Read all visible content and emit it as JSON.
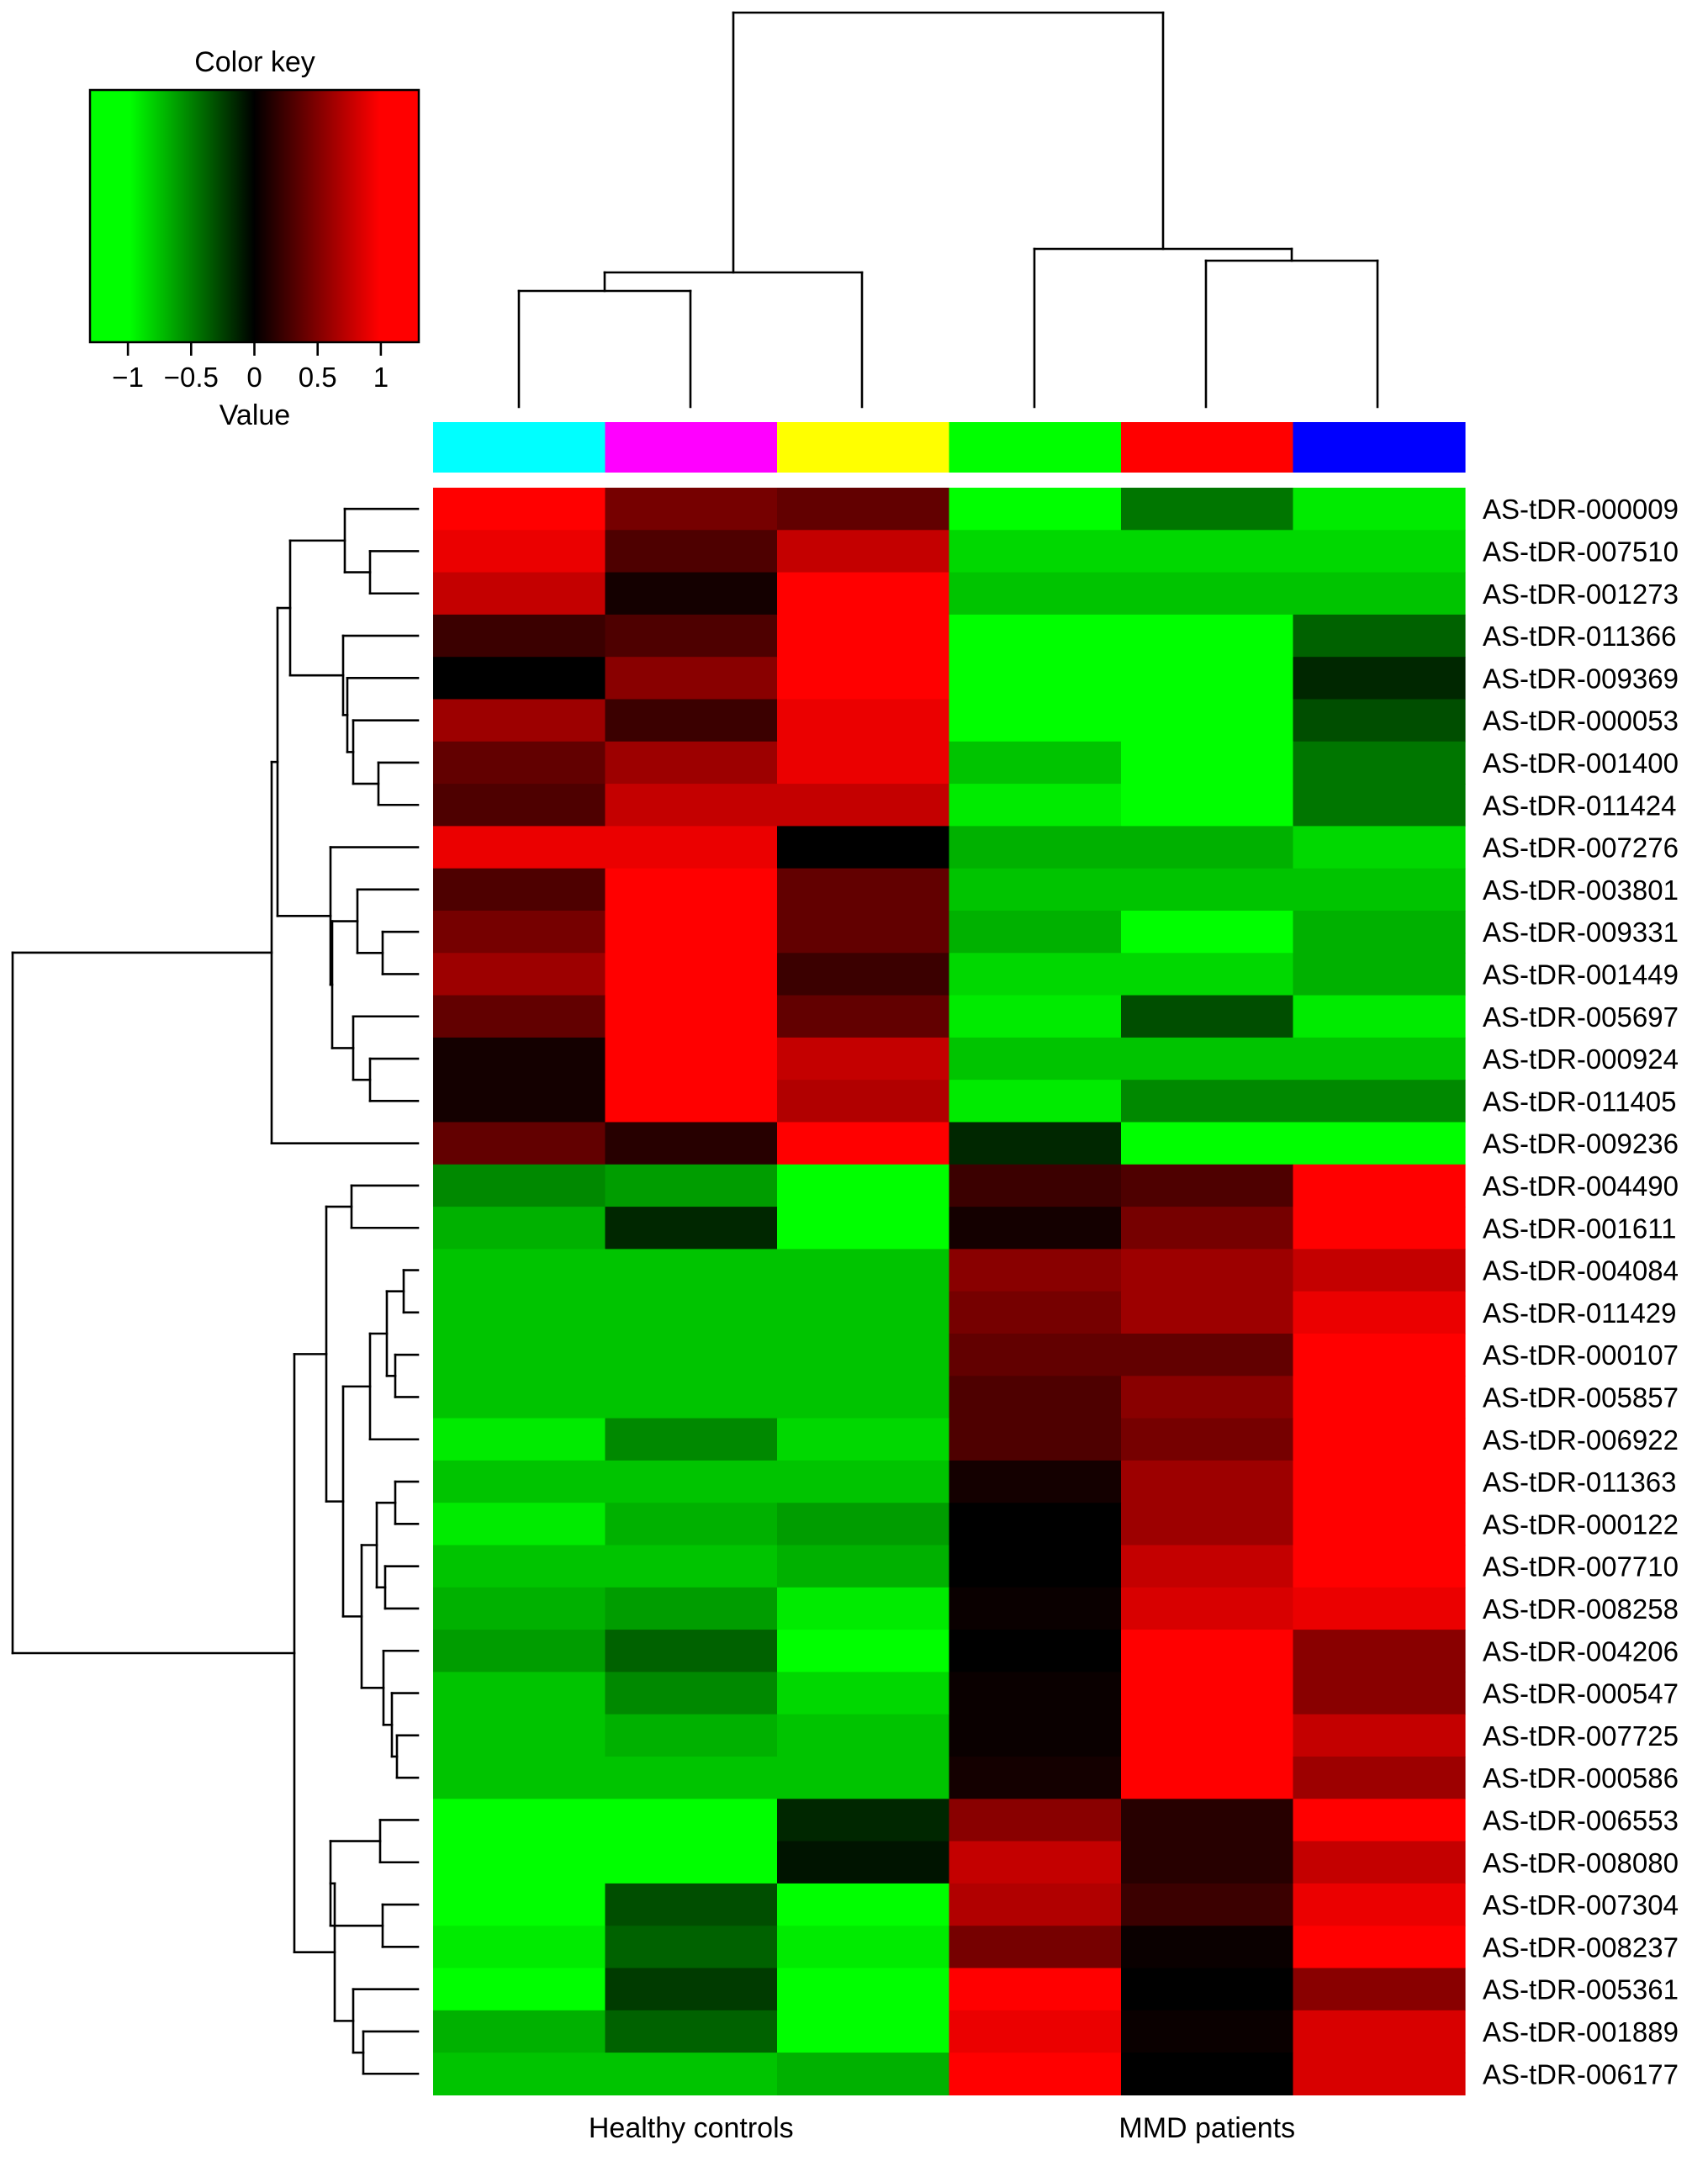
{
  "chart_data": {
    "type": "heatmap",
    "title": "",
    "color_key": {
      "title": "Color key",
      "xlabel": "Value",
      "range": [
        -1.3,
        1.3
      ],
      "ticks": [
        "−1",
        "−0.5",
        "0",
        "0.5",
        "1"
      ],
      "tick_values": [
        -1,
        -0.5,
        0,
        0.5,
        1
      ],
      "palette": {
        "low": "#00ff00",
        "mid": "#000000",
        "high": "#ff0000"
      }
    },
    "column_groups": [
      {
        "name": "Healthy controls",
        "columns": [
          0,
          1,
          2
        ]
      },
      {
        "name": "MMD patients",
        "columns": [
          3,
          4,
          5
        ]
      }
    ],
    "column_colors": [
      "#00ffff",
      "#ff00ff",
      "#ffff00",
      "#00ff00",
      "#ff0000",
      "#0000ff"
    ],
    "rows": [
      "AS-tDR-000009",
      "AS-tDR-007510",
      "AS-tDR-001273",
      "AS-tDR-011366",
      "AS-tDR-009369",
      "AS-tDR-000053",
      "AS-tDR-001400",
      "AS-tDR-011424",
      "AS-tDR-007276",
      "AS-tDR-003801",
      "AS-tDR-009331",
      "AS-tDR-001449",
      "AS-tDR-005697",
      "AS-tDR-000924",
      "AS-tDR-011405",
      "AS-tDR-009236",
      "AS-tDR-004490",
      "AS-tDR-001611",
      "AS-tDR-004084",
      "AS-tDR-011429",
      "AS-tDR-000107",
      "AS-tDR-005857",
      "AS-tDR-006922",
      "AS-tDR-011363",
      "AS-tDR-000122",
      "AS-tDR-007710",
      "AS-tDR-008258",
      "AS-tDR-004206",
      "AS-tDR-000547",
      "AS-tDR-007725",
      "AS-tDR-000586",
      "AS-tDR-006553",
      "AS-tDR-008080",
      "AS-tDR-007304",
      "AS-tDR-008237",
      "AS-tDR-005361",
      "AS-tDR-001889",
      "AS-tDR-006177"
    ],
    "values": [
      [
        1.3,
        0.6,
        0.5,
        -1.3,
        -0.6,
        -1.2
      ],
      [
        1.2,
        0.4,
        1.0,
        -1.1,
        -1.1,
        -1.1
      ],
      [
        1.0,
        0.1,
        1.3,
        -1.0,
        -1.0,
        -1.0
      ],
      [
        0.3,
        0.4,
        1.3,
        -1.3,
        -1.3,
        -0.5
      ],
      [
        0.0,
        0.7,
        1.3,
        -1.3,
        -1.3,
        -0.2
      ],
      [
        0.8,
        0.3,
        1.2,
        -1.3,
        -1.3,
        -0.4
      ],
      [
        0.5,
        0.8,
        1.2,
        -1.0,
        -1.3,
        -0.6
      ],
      [
        0.4,
        1.0,
        1.0,
        -1.2,
        -1.3,
        -0.6
      ],
      [
        1.2,
        1.2,
        0.0,
        -0.9,
        -0.9,
        -1.1
      ],
      [
        0.4,
        1.3,
        0.5,
        -1.0,
        -1.0,
        -1.0
      ],
      [
        0.6,
        1.3,
        0.5,
        -0.9,
        -1.3,
        -0.9
      ],
      [
        0.8,
        1.3,
        0.3,
        -1.1,
        -1.1,
        -0.9
      ],
      [
        0.5,
        1.3,
        0.5,
        -1.2,
        -0.4,
        -1.2
      ],
      [
        0.1,
        1.3,
        1.0,
        -1.0,
        -1.0,
        -1.0
      ],
      [
        0.1,
        1.3,
        0.9,
        -1.2,
        -0.7,
        -0.7
      ],
      [
        0.5,
        0.2,
        1.3,
        -0.2,
        -1.3,
        -1.3
      ],
      [
        -0.7,
        -0.8,
        -1.3,
        0.3,
        0.4,
        1.3
      ],
      [
        -0.9,
        -0.2,
        -1.3,
        0.1,
        0.6,
        1.3
      ],
      [
        -1.0,
        -1.0,
        -1.0,
        0.7,
        0.8,
        1.0
      ],
      [
        -1.0,
        -1.0,
        -1.0,
        0.6,
        0.8,
        1.2
      ],
      [
        -1.0,
        -1.0,
        -1.0,
        0.5,
        0.5,
        1.3
      ],
      [
        -1.0,
        -1.0,
        -1.0,
        0.4,
        0.7,
        1.3
      ],
      [
        -1.2,
        -0.7,
        -1.1,
        0.4,
        0.6,
        1.3
      ],
      [
        -1.0,
        -1.0,
        -1.0,
        0.1,
        0.8,
        1.3
      ],
      [
        -1.2,
        -0.9,
        -0.8,
        0.0,
        0.8,
        1.3
      ],
      [
        -1.0,
        -1.0,
        -0.9,
        0.0,
        1.0,
        1.3
      ],
      [
        -0.9,
        -0.8,
        -1.2,
        0.05,
        1.1,
        1.2
      ],
      [
        -0.8,
        -0.5,
        -1.3,
        0.0,
        1.3,
        0.7
      ],
      [
        -1.0,
        -0.7,
        -1.1,
        0.05,
        1.3,
        0.7
      ],
      [
        -1.0,
        -0.9,
        -1.0,
        0.05,
        1.3,
        1.0
      ],
      [
        -1.0,
        -1.0,
        -1.0,
        0.1,
        1.3,
        0.8
      ],
      [
        -1.3,
        -1.3,
        -0.2,
        0.7,
        0.2,
        1.3
      ],
      [
        -1.3,
        -1.3,
        -0.1,
        1.0,
        0.2,
        1.0
      ],
      [
        -1.3,
        -0.4,
        -1.3,
        0.9,
        0.3,
        1.2
      ],
      [
        -1.2,
        -0.5,
        -1.2,
        0.6,
        0.05,
        1.3
      ],
      [
        -1.3,
        -0.3,
        -1.3,
        1.3,
        0.0,
        0.7
      ],
      [
        -0.9,
        -0.5,
        -1.3,
        1.2,
        0.05,
        1.1
      ],
      [
        -1.0,
        -1.0,
        -0.9,
        1.3,
        0.0,
        1.1
      ]
    ]
  }
}
